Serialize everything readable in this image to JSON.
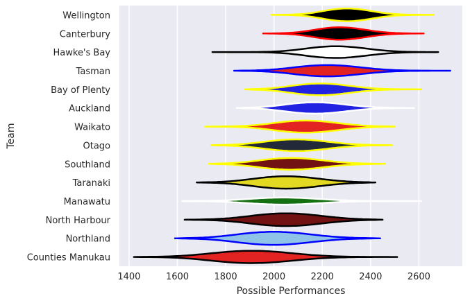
{
  "chart_data": {
    "type": "violin",
    "orientation": "horizontal",
    "xlabel": "Possible Performances",
    "ylabel": "Team",
    "xlim": [
      1360,
      2780
    ],
    "xticks": [
      1400,
      1600,
      1800,
      2000,
      2200,
      2400,
      2600
    ],
    "grid": true,
    "categories": [
      {
        "name": "Wellington",
        "fill": "#000000",
        "edge": "#ffff00",
        "min": 1990,
        "max": 2660,
        "center": 2310,
        "width": 0.72,
        "spread": 95
      },
      {
        "name": "Canterbury",
        "fill": "#000000",
        "edge": "#ff0000",
        "min": 1955,
        "max": 2620,
        "center": 2280,
        "width": 0.7,
        "spread": 100
      },
      {
        "name": "Hawke's Bay",
        "fill": "#ffffff",
        "edge": "#000000",
        "min": 1745,
        "max": 2680,
        "center": 2265,
        "width": 0.66,
        "spread": 120
      },
      {
        "name": "Tasman",
        "fill": "#e32222",
        "edge": "#0000ff",
        "min": 1835,
        "max": 2730,
        "center": 2230,
        "width": 0.64,
        "spread": 130
      },
      {
        "name": "Bay of Plenty",
        "fill": "#2222e3",
        "edge": "#ffff00",
        "min": 1880,
        "max": 2610,
        "center": 2200,
        "width": 0.66,
        "spread": 115
      },
      {
        "name": "Auckland",
        "fill": "#2222e3",
        "edge": "#ffffff",
        "min": 1845,
        "max": 2580,
        "center": 2180,
        "width": 0.64,
        "spread": 120
      },
      {
        "name": "Waikato",
        "fill": "#e32222",
        "edge": "#ffff00",
        "min": 1715,
        "max": 2500,
        "center": 2140,
        "width": 0.68,
        "spread": 125
      },
      {
        "name": "Otago",
        "fill": "#222a3a",
        "edge": "#ffff00",
        "min": 1740,
        "max": 2490,
        "center": 2100,
        "width": 0.66,
        "spread": 125
      },
      {
        "name": "Southland",
        "fill": "#731212",
        "edge": "#ffff00",
        "min": 1730,
        "max": 2460,
        "center": 2080,
        "width": 0.66,
        "spread": 125
      },
      {
        "name": "Taranaki",
        "fill": "#e3d822",
        "edge": "#000000",
        "min": 1680,
        "max": 2420,
        "center": 2060,
        "width": 0.7,
        "spread": 130
      },
      {
        "name": "Manawatu",
        "fill": "#157012",
        "edge": "#ffffff",
        "min": 1620,
        "max": 2610,
        "center": 2050,
        "width": 0.4,
        "spread": 140
      },
      {
        "name": "North Harbour",
        "fill": "#731212",
        "edge": "#000000",
        "min": 1630,
        "max": 2450,
        "center": 2060,
        "width": 0.72,
        "spread": 140
      },
      {
        "name": "Northland",
        "fill": "#8fc4e8",
        "edge": "#0000ff",
        "min": 1590,
        "max": 2440,
        "center": 2010,
        "width": 0.74,
        "spread": 145
      },
      {
        "name": "Counties Manukau",
        "fill": "#e32222",
        "edge": "#000000",
        "min": 1420,
        "max": 2510,
        "center": 1920,
        "width": 0.7,
        "spread": 160
      }
    ],
    "colors": {
      "background": "#eaeaf2",
      "grid": "#ffffff",
      "text": "#262626"
    }
  }
}
